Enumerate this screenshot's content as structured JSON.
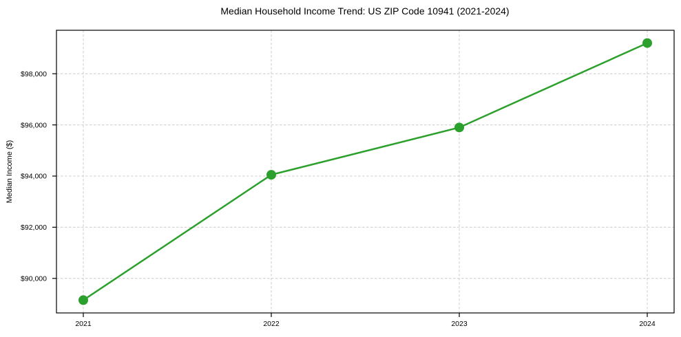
{
  "chart_data": {
    "type": "line",
    "title": "Median Household Income Trend: US ZIP Code 10941 (2021-2024)",
    "xlabel": "",
    "ylabel": "Median Income ($)",
    "x": [
      2021,
      2022,
      2023,
      2024
    ],
    "x_tick_labels": [
      "2021",
      "2022",
      "2023",
      "2024"
    ],
    "series": [
      {
        "name": "Median Household Income",
        "values": [
          89150,
          94050,
          95900,
          99200
        ],
        "color": "#2ca02c",
        "marker": "circle",
        "line_width": 2.5,
        "marker_radius": 7
      }
    ],
    "yticks": [
      90000,
      92000,
      94000,
      96000,
      98000
    ],
    "ytick_labels": [
      "$90,000",
      "$92,000",
      "$94,000",
      "$96,000",
      "$98,000"
    ],
    "ylim": [
      88650,
      99700
    ],
    "grid": true,
    "grid_style": "dashed",
    "grid_axes": "both",
    "legend": "none",
    "colors": {
      "line": "#2ca02c",
      "grid": "#cccccc",
      "spine": "#000000",
      "tick": "#000000",
      "text": "#000000",
      "background": "#ffffff"
    }
  }
}
